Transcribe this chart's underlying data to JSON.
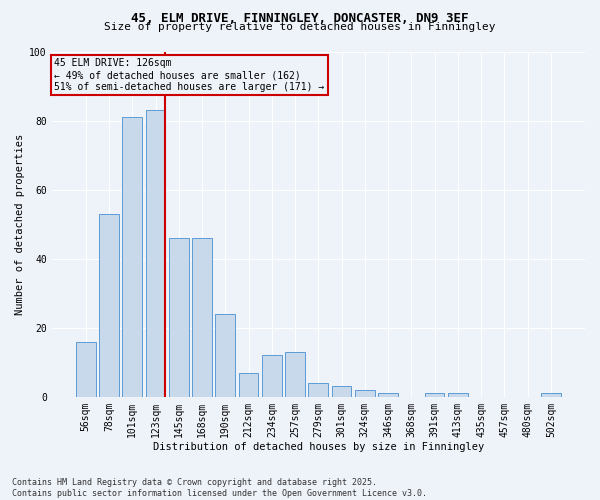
{
  "title_line1": "45, ELM DRIVE, FINNINGLEY, DONCASTER, DN9 3EF",
  "title_line2": "Size of property relative to detached houses in Finningley",
  "xlabel": "Distribution of detached houses by size in Finningley",
  "ylabel": "Number of detached properties",
  "categories": [
    "56sqm",
    "78sqm",
    "101sqm",
    "123sqm",
    "145sqm",
    "168sqm",
    "190sqm",
    "212sqm",
    "234sqm",
    "257sqm",
    "279sqm",
    "301sqm",
    "324sqm",
    "346sqm",
    "368sqm",
    "391sqm",
    "413sqm",
    "435sqm",
    "457sqm",
    "480sqm",
    "502sqm"
  ],
  "values": [
    16,
    53,
    81,
    83,
    46,
    46,
    24,
    7,
    12,
    13,
    4,
    3,
    2,
    1,
    0,
    1,
    1,
    0,
    0,
    0,
    1
  ],
  "bar_color": "#c9d9ec",
  "bar_edge_color": "#5b9bd5",
  "vline_color": "#cc0000",
  "annotation_text": "45 ELM DRIVE: 126sqm\n← 49% of detached houses are smaller (162)\n51% of semi-detached houses are larger (171) →",
  "annotation_box_color": "#cc0000",
  "background_color": "#eef2f9",
  "grid_color": "#ffffff",
  "footer_line1": "Contains HM Land Registry data © Crown copyright and database right 2025.",
  "footer_line2": "Contains public sector information licensed under the Open Government Licence v3.0.",
  "ylim": [
    0,
    100
  ],
  "yticks": [
    0,
    20,
    40,
    60,
    80,
    100
  ],
  "title_fontsize": 9,
  "subtitle_fontsize": 8,
  "ylabel_fontsize": 7.5,
  "xlabel_fontsize": 7.5,
  "tick_fontsize": 7,
  "footer_fontsize": 6,
  "ann_fontsize": 7
}
